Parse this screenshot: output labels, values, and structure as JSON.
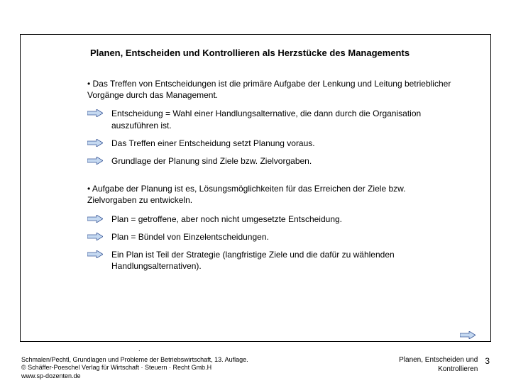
{
  "colors": {
    "arrow_fill": "#c5d9f1",
    "arrow_stroke": "#3b5998",
    "border": "#000000",
    "text": "#000000",
    "bg": "#ffffff"
  },
  "title": "Planen, Entscheiden und Kontrollieren als Herzstücke des Managements",
  "para1": "• Das Treffen von Entscheidungen ist die primäre Aufgabe der Lenkung und Leitung betrieblicher Vorgänge durch das Management.",
  "list1": [
    "Entscheidung  =  Wahl einer Handlungsalternative, die dann durch die Organisation auszuführen ist.",
    "Das Treffen einer Entscheidung setzt Planung voraus.",
    "Grundlage der Planung sind Ziele bzw. Zielvorgaben."
  ],
  "para2": "• Aufgabe der Planung ist es, Lösungsmöglichkeiten für das Erreichen der Ziele bzw. Zielvorgaben zu entwickeln.",
  "list2": [
    "Plan = getroffene, aber noch nicht umgesetzte Entscheidung.",
    "Plan = Bündel von Einzelentscheidungen.",
    "Ein Plan ist Teil der Strategie (langfristige Ziele und die dafür zu wählenden Handlungsalternativen)."
  ],
  "footer": {
    "line1": "Schmalen/Pechtl, Grundlagen und Probleme der Betriebswirtschaft, 13. Auflage.",
    "line2": "© Schäffer-Poeschel Verlag für Wirtschaft · Steuern · Recht Gmb.H",
    "line3": "www.sp-dozenten.de",
    "chapter": "Planen, Entscheiden und Kontrollieren",
    "page": "3"
  }
}
